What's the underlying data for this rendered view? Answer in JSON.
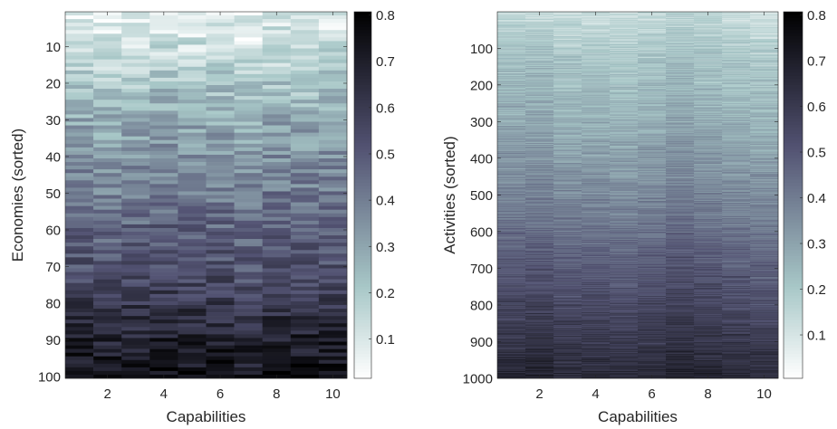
{
  "chart_data": [
    {
      "type": "heatmap",
      "title": "",
      "xlabel": "Capabilities",
      "ylabel": "Economies (sorted)",
      "rows": 100,
      "columns": 10,
      "xticks": [
        2,
        4,
        6,
        8,
        10
      ],
      "yticks": [
        10,
        20,
        30,
        40,
        50,
        60,
        70,
        80,
        90,
        100
      ],
      "colormap": "bone (reversed, white = low)",
      "colorbar": {
        "ticks": [
          0.1,
          0.2,
          0.3,
          0.4,
          0.5,
          0.6,
          0.7,
          0.8
        ],
        "range": [
          0.015,
          0.807
        ],
        "placement": "right"
      },
      "approx_row_means": {
        "rows": [
          1,
          10,
          20,
          30,
          40,
          50,
          60,
          70,
          80,
          90,
          100
        ],
        "values": [
          0.08,
          0.12,
          0.2,
          0.28,
          0.34,
          0.4,
          0.46,
          0.52,
          0.6,
          0.68,
          0.74
        ]
      },
      "grid": false
    },
    {
      "type": "heatmap",
      "title": "",
      "xlabel": "Capabilities",
      "ylabel": "Activities (sorted)",
      "rows": 1000,
      "columns": 10,
      "xticks": [
        2,
        4,
        6,
        8,
        10
      ],
      "yticks": [
        100,
        200,
        300,
        400,
        500,
        600,
        700,
        800,
        900,
        1000
      ],
      "colormap": "bone (reversed, white = low)",
      "colorbar": {
        "ticks": [
          0.1,
          0.2,
          0.3,
          0.4,
          0.5,
          0.6,
          0.7,
          0.8
        ],
        "range": [
          0.005,
          0.807
        ],
        "placement": "right"
      },
      "approx_row_means": {
        "rows": [
          1,
          100,
          200,
          300,
          400,
          500,
          600,
          700,
          800,
          900,
          1000
        ],
        "values": [
          0.14,
          0.2,
          0.24,
          0.28,
          0.33,
          0.38,
          0.44,
          0.5,
          0.56,
          0.62,
          0.68
        ]
      },
      "grid": false
    }
  ]
}
